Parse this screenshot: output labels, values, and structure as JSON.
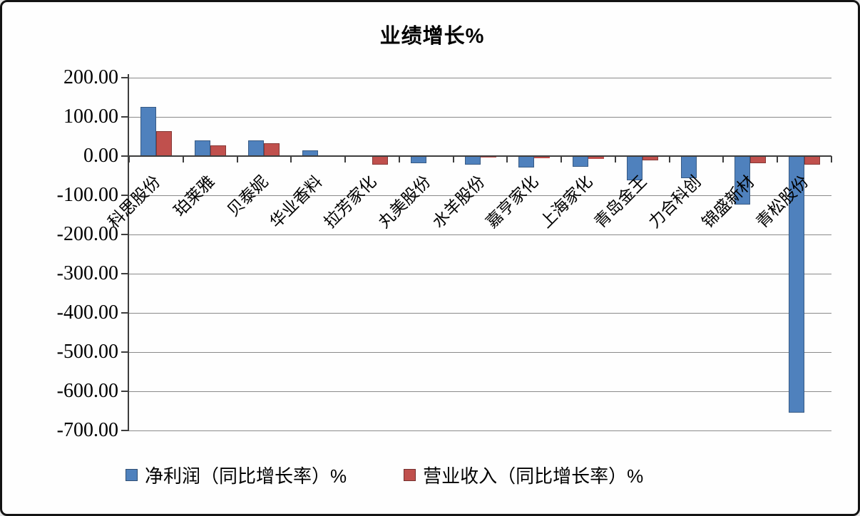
{
  "title": "业绩增长%",
  "chart_data": {
    "type": "bar",
    "title": "业绩增长%",
    "categories": [
      "科思股份",
      "珀莱雅",
      "贝泰妮",
      "华业香料",
      "拉芳家化",
      "丸美股份",
      "水羊股份",
      "嘉亨家化",
      "上海家化",
      "青岛金王",
      "力合科创",
      "锦盛新材",
      "青松股份"
    ],
    "series": [
      {
        "name": "净利润（同比增长率）%",
        "color": "#4F81BD",
        "values": [
          125,
          40,
          40,
          14,
          2,
          -18,
          -22,
          -29,
          -27,
          -62,
          -57,
          -124,
          -655
        ]
      },
      {
        "name": "营业收入（同比增长率）%",
        "color": "#C0504D",
        "values": [
          64,
          28,
          32,
          1,
          -22,
          -2,
          -3,
          -5,
          -7,
          -10,
          -2,
          -18,
          -21
        ]
      }
    ],
    "xlabel": "",
    "ylabel": "",
    "ylim": [
      -700,
      200
    ],
    "ytick_step": 100,
    "ytick_labels": [
      "200.00",
      "100.00",
      "0.00",
      "-100.00",
      "-200.00",
      "-300.00",
      "-400.00",
      "-500.00",
      "-600.00",
      "-700.00"
    ],
    "grid": true,
    "legend_position": "bottom",
    "colors": {
      "grid": "#8a8a8a",
      "axis": "#3d3d3d",
      "text": "#000000",
      "background": "#fefefe"
    }
  }
}
